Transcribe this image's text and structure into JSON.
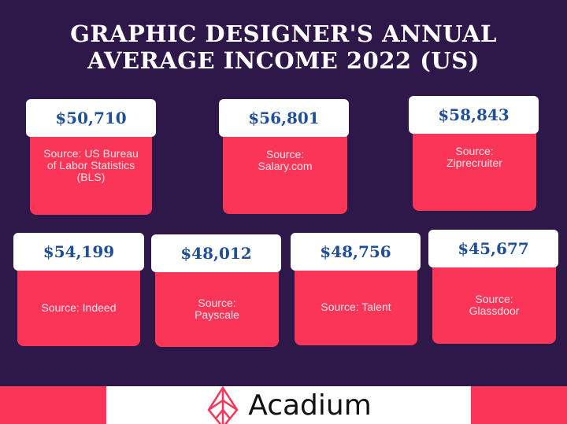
{
  "title_line1": "GRAPHIC DESIGNER'S ANNUAL",
  "title_line2": "AVERAGE INCOME 2022 (US)",
  "cards": [
    {
      "value": "$50,710",
      "source": "Source: US Bureau of Labor Statistics (BLS)"
    },
    {
      "value": "$56,801",
      "source": "Source: Salary.com"
    },
    {
      "value": "$58,843",
      "source": "Source: Ziprecruiter"
    },
    {
      "value": "$54,199",
      "source": "Source: Indeed"
    },
    {
      "value": "$48,012",
      "source": "Source: Payscale"
    },
    {
      "value": "$48,756",
      "source": "Source: Talent"
    },
    {
      "value": "$45,677",
      "source": "Source: Glassdoor"
    }
  ],
  "footer": {
    "brand": "Acadium",
    "icon": "acadium-diamond-logo"
  },
  "colors": {
    "background": "#2e1749",
    "accent": "#fb3558",
    "value_text": "#1f4f98"
  }
}
